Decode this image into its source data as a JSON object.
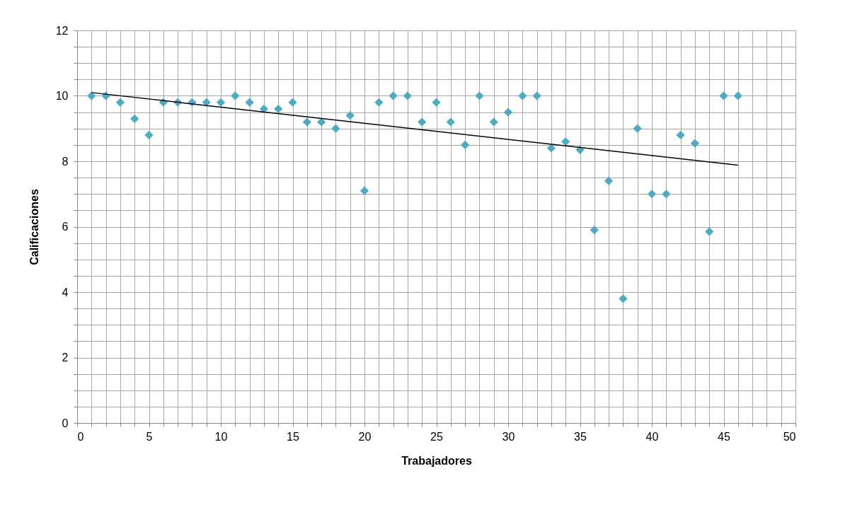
{
  "chart_data": {
    "type": "scatter",
    "xlabel": "Trabajadores",
    "ylabel": "Calificaciones",
    "x": [
      1,
      2,
      3,
      4,
      5,
      6,
      7,
      8,
      9,
      10,
      11,
      12,
      13,
      14,
      15,
      16,
      17,
      18,
      19,
      20,
      21,
      22,
      23,
      24,
      25,
      26,
      27,
      28,
      29,
      30,
      31,
      32,
      33,
      34,
      35,
      36,
      37,
      38,
      39,
      40,
      41,
      42,
      43,
      44,
      45,
      46
    ],
    "series": [
      {
        "color": "#4bacc6",
        "marker": "diamond",
        "values": [
          10,
          10,
          9.8,
          9.3,
          8.8,
          9.8,
          9.8,
          9.8,
          9.8,
          9.8,
          10,
          9.8,
          9.6,
          9.6,
          9.8,
          9.2,
          9.2,
          9.0,
          9.4,
          7.1,
          9.8,
          10,
          10,
          9.2,
          9.8,
          9.2,
          8.5,
          10,
          9.2,
          9.5,
          10,
          10,
          8.4,
          8.6,
          8.35,
          5.9,
          7.4,
          3.8,
          9.0,
          7.0,
          7.0,
          8.8,
          8.55,
          5.85,
          10,
          10
        ]
      },
      {
        "type": "line",
        "color": "#000000",
        "x": [
          1,
          46
        ],
        "values": [
          10.1,
          7.88
        ],
        "line_style": "solid",
        "marker": "none"
      }
    ],
    "xlim": [
      0,
      50
    ],
    "xticks": [
      0,
      {
        "value": 1,
        "label": null
      },
      {
        "value": 2,
        "label": null
      },
      {
        "value": 3,
        "label": null
      },
      {
        "value": 4,
        "label": null
      },
      5,
      {
        "value": 6,
        "label": null
      },
      {
        "value": 7,
        "label": null
      },
      {
        "value": 8,
        "label": null
      },
      {
        "value": 9,
        "label": null
      },
      10,
      {
        "value": 11,
        "label": null
      },
      {
        "value": 12,
        "label": null
      },
      {
        "value": 13,
        "label": null
      },
      {
        "value": 14,
        "label": null
      },
      15,
      {
        "value": 16,
        "label": null
      },
      {
        "value": 17,
        "label": null
      },
      {
        "value": 18,
        "label": null
      },
      {
        "value": 19,
        "label": null
      },
      20,
      {
        "value": 21,
        "label": null
      },
      {
        "value": 22,
        "label": null
      },
      {
        "value": 23,
        "label": null
      },
      {
        "value": 24,
        "label": null
      },
      25,
      {
        "value": 26,
        "label": null
      },
      {
        "value": 27,
        "label": null
      },
      {
        "value": 28,
        "label": null
      },
      {
        "value": 29,
        "label": null
      },
      30,
      {
        "value": 31,
        "label": null
      },
      {
        "value": 32,
        "label": null
      },
      {
        "value": 33,
        "label": null
      },
      {
        "value": 34,
        "label": null
      },
      35,
      {
        "value": 36,
        "label": null
      },
      {
        "value": 37,
        "label": null
      },
      {
        "value": 38,
        "label": null
      },
      {
        "value": 39,
        "label": null
      },
      40,
      {
        "value": 41,
        "label": null
      },
      {
        "value": 42,
        "label": null
      },
      {
        "value": 43,
        "label": null
      },
      {
        "value": 44,
        "label": null
      },
      45,
      {
        "value": 46,
        "label": null
      },
      {
        "value": 47,
        "label": null
      },
      {
        "value": 48,
        "label": null
      },
      {
        "value": 49,
        "label": null
      },
      50
    ],
    "ylim": [
      0,
      12
    ],
    "yticks": [
      0,
      {
        "value": 0.5,
        "label": null
      },
      {
        "value": 1,
        "label": null
      },
      {
        "value": 1.5,
        "label": null
      },
      2,
      {
        "value": 2.5,
        "label": null
      },
      {
        "value": 3,
        "label": null
      },
      {
        "value": 3.5,
        "label": null
      },
      4,
      {
        "value": 4.5,
        "label": null
      },
      {
        "value": 5,
        "label": null
      },
      {
        "value": 5.5,
        "label": null
      },
      6,
      {
        "value": 6.5,
        "label": null
      },
      {
        "value": 7,
        "label": null
      },
      {
        "value": 7.5,
        "label": null
      },
      8,
      {
        "value": 8.5,
        "label": null
      },
      {
        "value": 9,
        "label": null
      },
      {
        "value": 9.5,
        "label": null
      },
      10,
      {
        "value": 10.5,
        "label": null
      },
      {
        "value": 11,
        "label": null
      },
      {
        "value": 11.5,
        "label": null
      },
      12
    ],
    "grid": true
  }
}
